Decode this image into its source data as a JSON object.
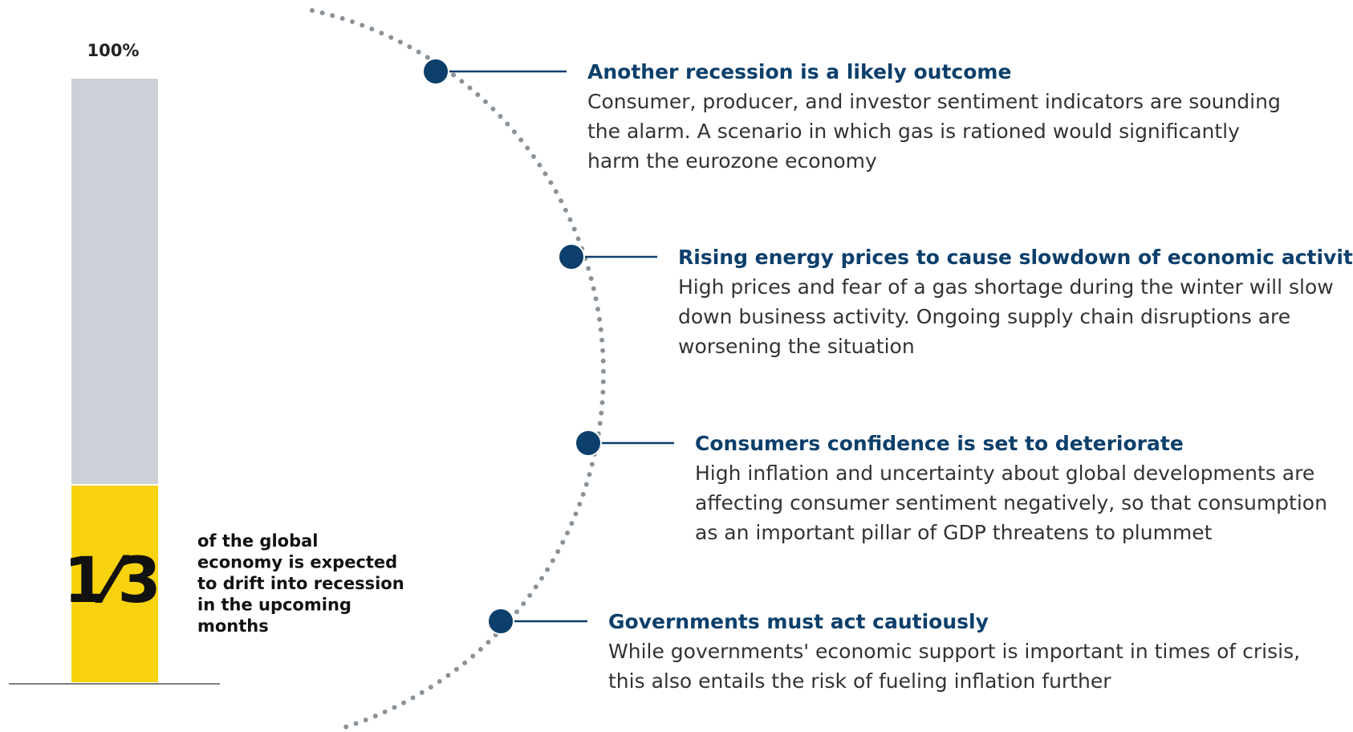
{
  "bar": {
    "top_label": "100%",
    "fraction": "1⁄3",
    "description": [
      "of the global",
      "economy is expected",
      "to drift into recession",
      "in the upcoming",
      "months"
    ]
  },
  "items": [
    {
      "title": "Another recession is a likely outcome",
      "body": [
        "Consumer, producer, and investor sentiment indicators are sounding",
        "the alarm. A scenario in which gas is rationed would significantly",
        "harm the eurozone economy"
      ]
    },
    {
      "title": "Rising energy prices to cause slowdown of economic activities",
      "body": [
        "High prices and fear of a gas shortage during the winter will slow",
        "down business activity. Ongoing supply chain disruptions are",
        "worsening the situation"
      ]
    },
    {
      "title": "Consumers confidence is set to deteriorate",
      "body": [
        "High inflation and uncertainty about global developments are",
        "affecting consumer sentiment negatively, so that consumption",
        "as an important pillar of GDP threatens to plummet"
      ]
    },
    {
      "title": "Governments must act cautiously",
      "body": [
        "While governments' economic support is important in times of crisis,",
        "this also entails the risk of fueling inflation further"
      ]
    }
  ]
}
